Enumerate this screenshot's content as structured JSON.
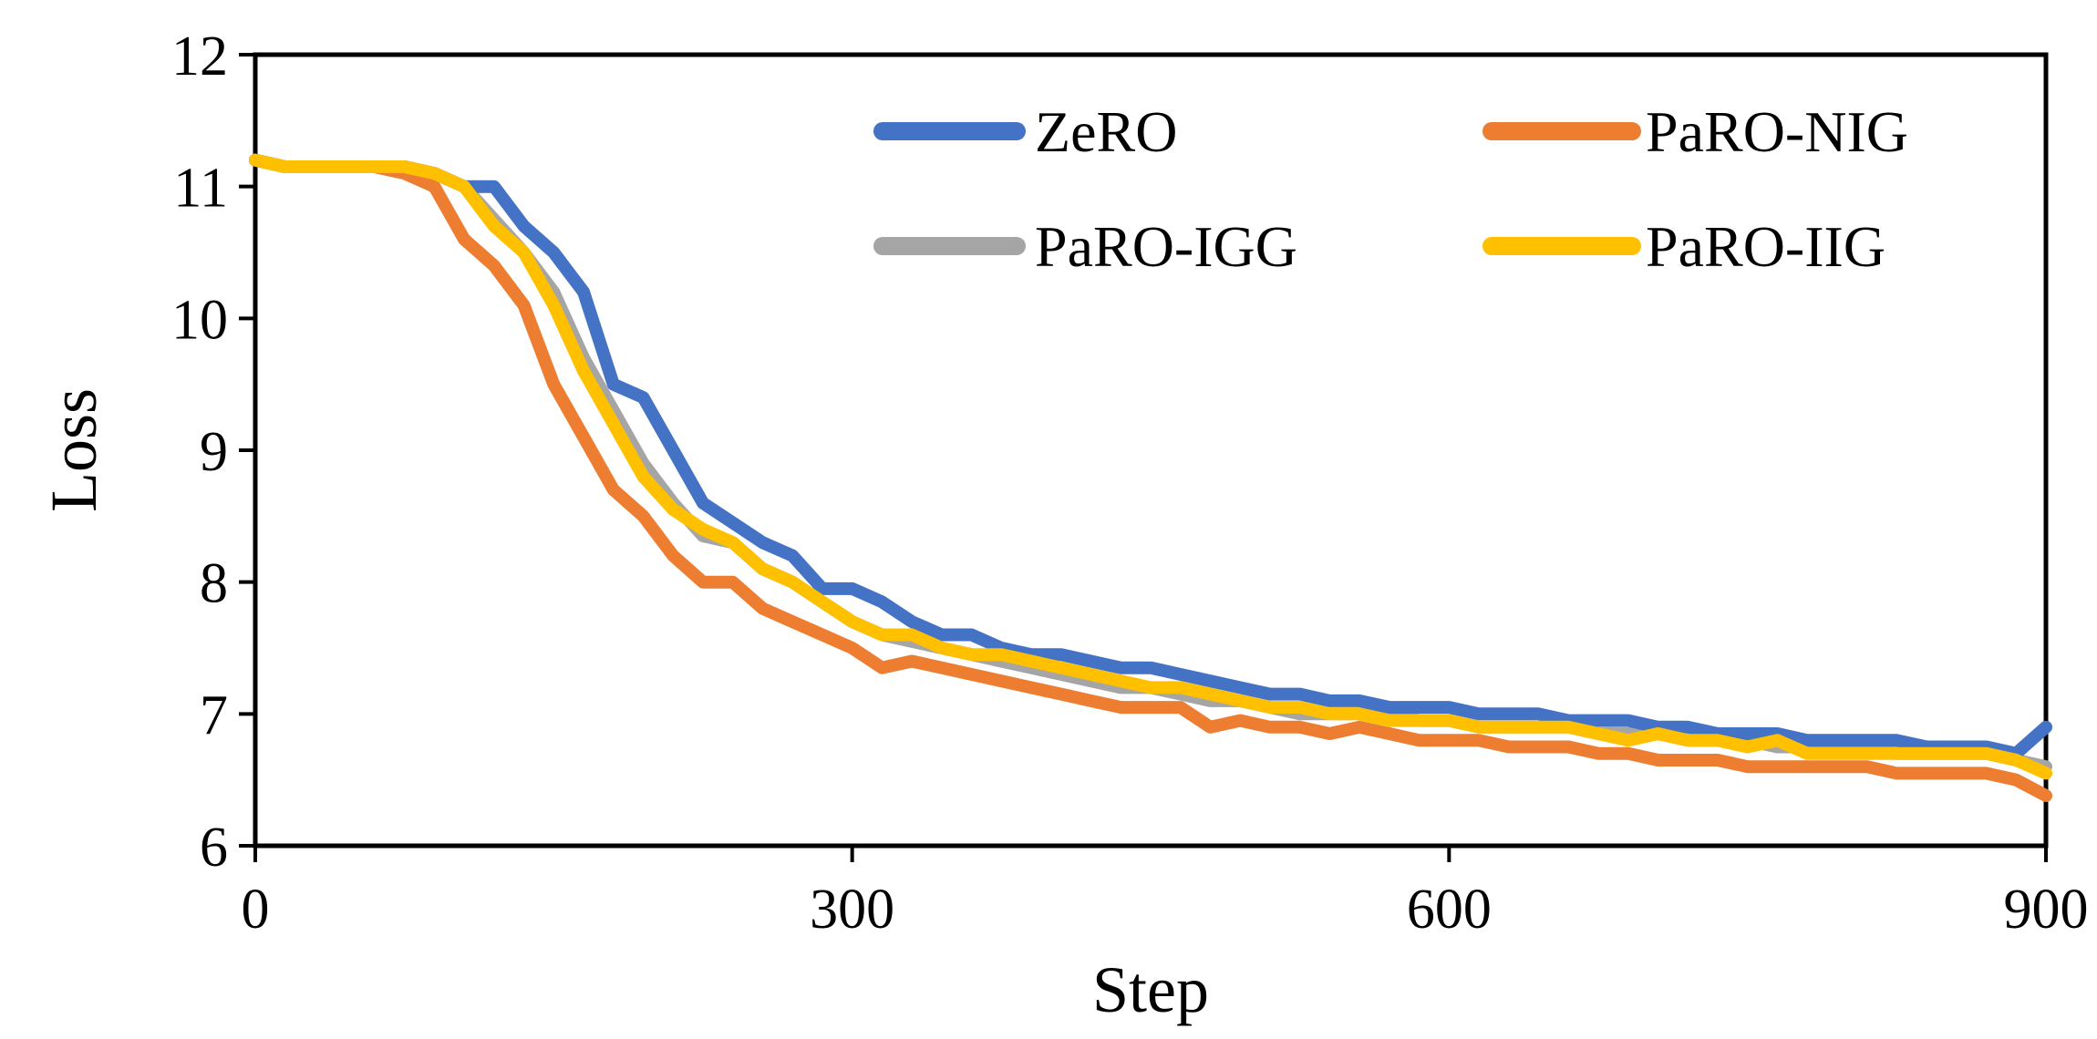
{
  "chart_data": {
    "type": "line",
    "title": "",
    "xlabel": "Step",
    "ylabel": "Loss",
    "xlim": [
      0,
      900
    ],
    "ylim": [
      6,
      12
    ],
    "xticks": [
      0,
      300,
      600,
      900
    ],
    "yticks": [
      6,
      7,
      8,
      9,
      10,
      11,
      12
    ],
    "xtick_labels": [
      "0",
      "300",
      "600",
      "900"
    ],
    "ytick_labels": [
      "6",
      "7",
      "8",
      "9",
      "10",
      "11",
      "12"
    ],
    "grid": false,
    "legend_position": "top-right",
    "x": [
      0,
      15,
      30,
      45,
      60,
      75,
      90,
      105,
      120,
      135,
      150,
      165,
      180,
      195,
      210,
      225,
      240,
      255,
      270,
      285,
      300,
      315,
      330,
      345,
      360,
      375,
      390,
      405,
      420,
      435,
      450,
      465,
      480,
      495,
      510,
      525,
      540,
      555,
      570,
      585,
      600,
      615,
      630,
      645,
      660,
      675,
      690,
      705,
      720,
      735,
      750,
      765,
      780,
      795,
      810,
      825,
      840,
      855,
      870,
      885,
      900
    ],
    "series": [
      {
        "name": "ZeRO",
        "color": "#4472C4",
        "values": [
          11.2,
          11.15,
          11.15,
          11.15,
          11.15,
          11.15,
          11.1,
          11.0,
          11.0,
          10.7,
          10.5,
          10.2,
          9.5,
          9.4,
          9.0,
          8.6,
          8.45,
          8.3,
          8.2,
          7.95,
          7.95,
          7.85,
          7.7,
          7.6,
          7.6,
          7.5,
          7.45,
          7.45,
          7.4,
          7.35,
          7.35,
          7.3,
          7.25,
          7.2,
          7.15,
          7.15,
          7.1,
          7.1,
          7.05,
          7.05,
          7.05,
          7.0,
          7.0,
          7.0,
          6.95,
          6.95,
          6.95,
          6.9,
          6.9,
          6.85,
          6.85,
          6.85,
          6.8,
          6.8,
          6.8,
          6.8,
          6.75,
          6.75,
          6.75,
          6.7,
          6.9
        ]
      },
      {
        "name": "PaRO-NIG",
        "color": "#ED7D31",
        "values": [
          11.2,
          11.15,
          11.15,
          11.15,
          11.15,
          11.1,
          11.0,
          10.6,
          10.4,
          10.1,
          9.5,
          9.1,
          8.7,
          8.5,
          8.2,
          8.0,
          8.0,
          7.8,
          7.7,
          7.6,
          7.5,
          7.35,
          7.4,
          7.35,
          7.3,
          7.25,
          7.2,
          7.15,
          7.1,
          7.05,
          7.05,
          7.05,
          6.9,
          6.95,
          6.9,
          6.9,
          6.85,
          6.9,
          6.85,
          6.8,
          6.8,
          6.8,
          6.75,
          6.75,
          6.75,
          6.7,
          6.7,
          6.65,
          6.65,
          6.65,
          6.6,
          6.6,
          6.6,
          6.6,
          6.6,
          6.55,
          6.55,
          6.55,
          6.55,
          6.5,
          6.38
        ]
      },
      {
        "name": "PaRO-IGG",
        "color": "#A5A5A5",
        "values": [
          11.2,
          11.15,
          11.15,
          11.15,
          11.15,
          11.15,
          11.1,
          11.0,
          10.75,
          10.5,
          10.2,
          9.7,
          9.3,
          8.9,
          8.6,
          8.35,
          8.3,
          8.1,
          8.0,
          7.85,
          7.7,
          7.6,
          7.55,
          7.5,
          7.45,
          7.4,
          7.35,
          7.3,
          7.25,
          7.2,
          7.2,
          7.15,
          7.1,
          7.1,
          7.05,
          7.0,
          7.0,
          7.0,
          7.0,
          6.95,
          6.95,
          6.9,
          6.9,
          6.9,
          6.9,
          6.85,
          6.85,
          6.85,
          6.8,
          6.8,
          6.8,
          6.75,
          6.75,
          6.75,
          6.75,
          6.7,
          6.7,
          6.7,
          6.7,
          6.65,
          6.6
        ]
      },
      {
        "name": "PaRO-IIG",
        "color": "#FFC000",
        "values": [
          11.2,
          11.15,
          11.15,
          11.15,
          11.15,
          11.15,
          11.1,
          11.0,
          10.7,
          10.5,
          10.1,
          9.6,
          9.2,
          8.8,
          8.55,
          8.4,
          8.3,
          8.1,
          8.0,
          7.85,
          7.7,
          7.6,
          7.6,
          7.5,
          7.45,
          7.45,
          7.4,
          7.35,
          7.3,
          7.25,
          7.2,
          7.2,
          7.15,
          7.1,
          7.05,
          7.05,
          7.0,
          7.0,
          6.95,
          6.95,
          6.95,
          6.9,
          6.9,
          6.9,
          6.9,
          6.85,
          6.8,
          6.85,
          6.8,
          6.8,
          6.75,
          6.8,
          6.7,
          6.7,
          6.7,
          6.7,
          6.7,
          6.7,
          6.7,
          6.65,
          6.55
        ]
      }
    ]
  }
}
